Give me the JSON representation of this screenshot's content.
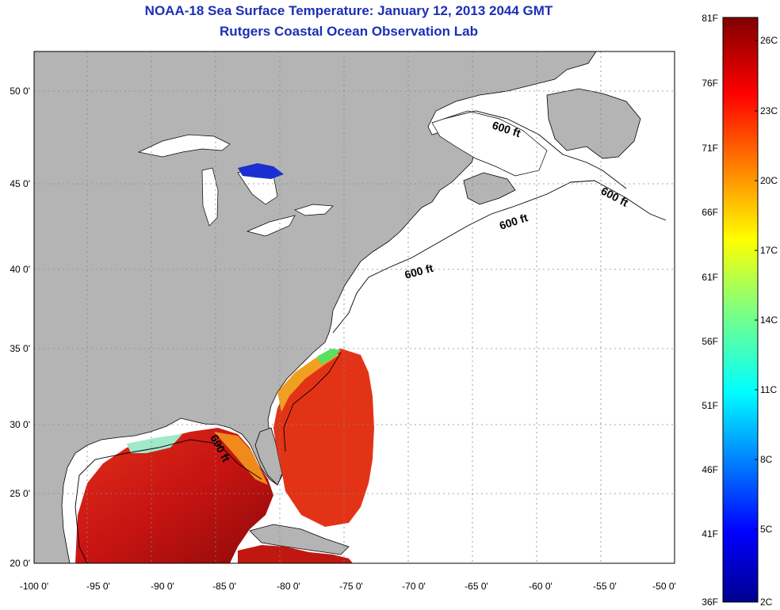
{
  "title": {
    "line1": "NOAA-18 Sea Surface Temperature:  January 12, 2013 2044 GMT",
    "line2": "Rutgers Coastal Ocean Observation Lab"
  },
  "map": {
    "lon_range": [
      -100,
      -50
    ],
    "lat_range": [
      20,
      52.5
    ],
    "lon_ticks": [
      "-100 0'",
      "-95 0'",
      "-90 0'",
      "-85 0'",
      "-80 0'",
      "-75 0'",
      "-70 0'",
      "-65 0'",
      "-60 0'",
      "-55 0'",
      "-50 0'"
    ],
    "lat_ticks": [
      "20 0'",
      "25 0'",
      "30 0'",
      "35 0'",
      "40 0'",
      "45 0'",
      "50 0'"
    ],
    "grid": "dotted",
    "land_color": "#b4b4b4",
    "missing_data_color": "#ffffff",
    "contour_labels": [
      "600 ft",
      "600 ft",
      "600 ft",
      "600 ft",
      "600 ft"
    ]
  },
  "colorbar": {
    "fahrenheit": [
      "81F",
      "76F",
      "71F",
      "66F",
      "61F",
      "56F",
      "51F",
      "46F",
      "41F",
      "36F"
    ],
    "celsius": [
      "26C",
      "23C",
      "20C",
      "17C",
      "14C",
      "11C",
      "8C",
      "5C",
      "2C"
    ],
    "range_f": [
      36,
      81
    ],
    "colormap": "jet"
  }
}
